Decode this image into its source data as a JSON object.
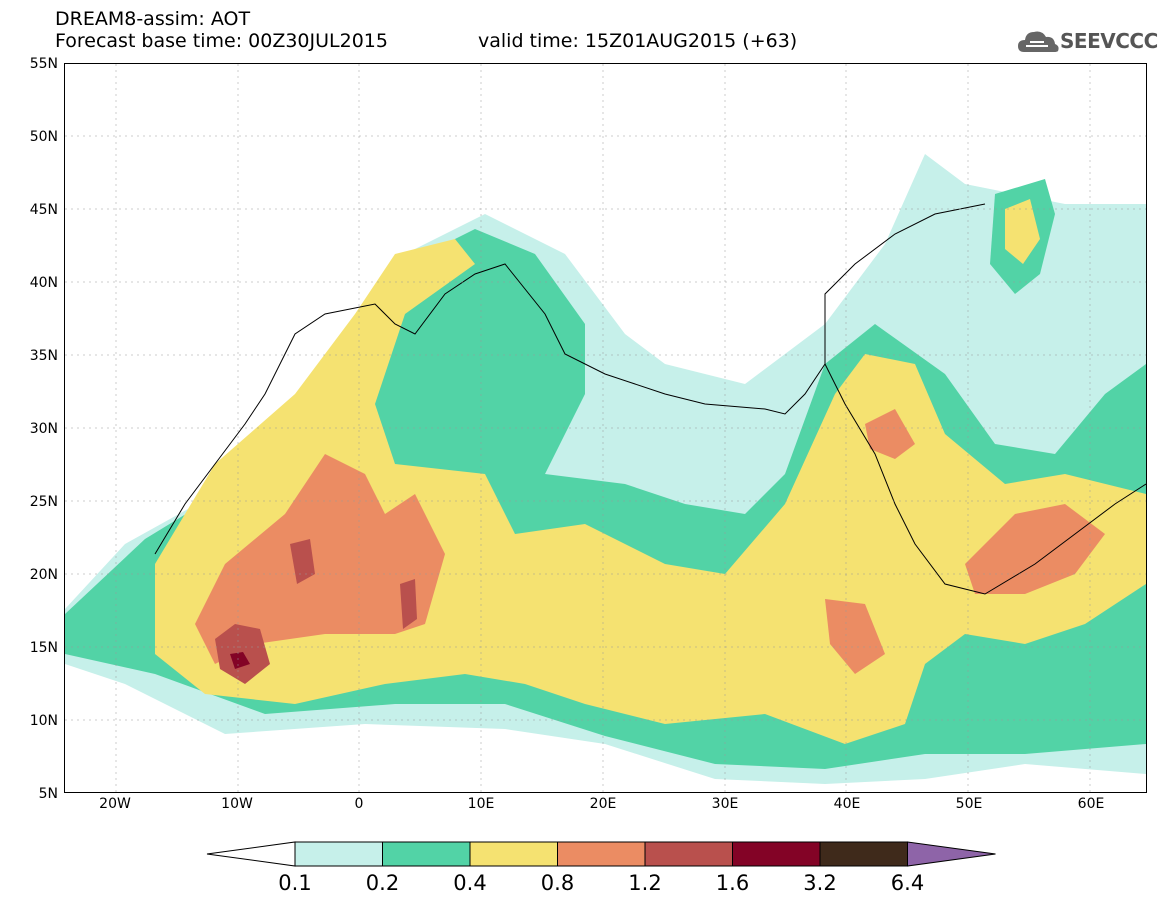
{
  "header": {
    "title": "DREAM8-assim: AOT",
    "base_time": "Forecast base time: 00Z30JUL2015",
    "valid_time": "valid time: 15Z01AUG2015 (+63)",
    "logo_text": "SEEVCCC"
  },
  "map": {
    "variable": "AOT",
    "lat_labels": [
      "55N",
      "50N",
      "45N",
      "40N",
      "35N",
      "30N",
      "25N",
      "20N",
      "15N",
      "10N",
      "5N"
    ],
    "lon_labels": [
      "20W",
      "10W",
      "0",
      "10E",
      "20E",
      "30E",
      "40E",
      "50E",
      "60E"
    ]
  },
  "colorbar": {
    "labels": [
      "0.1",
      "0.2",
      "0.4",
      "0.8",
      "1.2",
      "1.6",
      "3.2",
      "6.4"
    ],
    "colors": [
      "#c6f0ea",
      "#52d3a6",
      "#f5e271",
      "#eb8c63",
      "#b9504d",
      "#830326",
      "#3f2a1b",
      "#8e64a8"
    ]
  }
}
